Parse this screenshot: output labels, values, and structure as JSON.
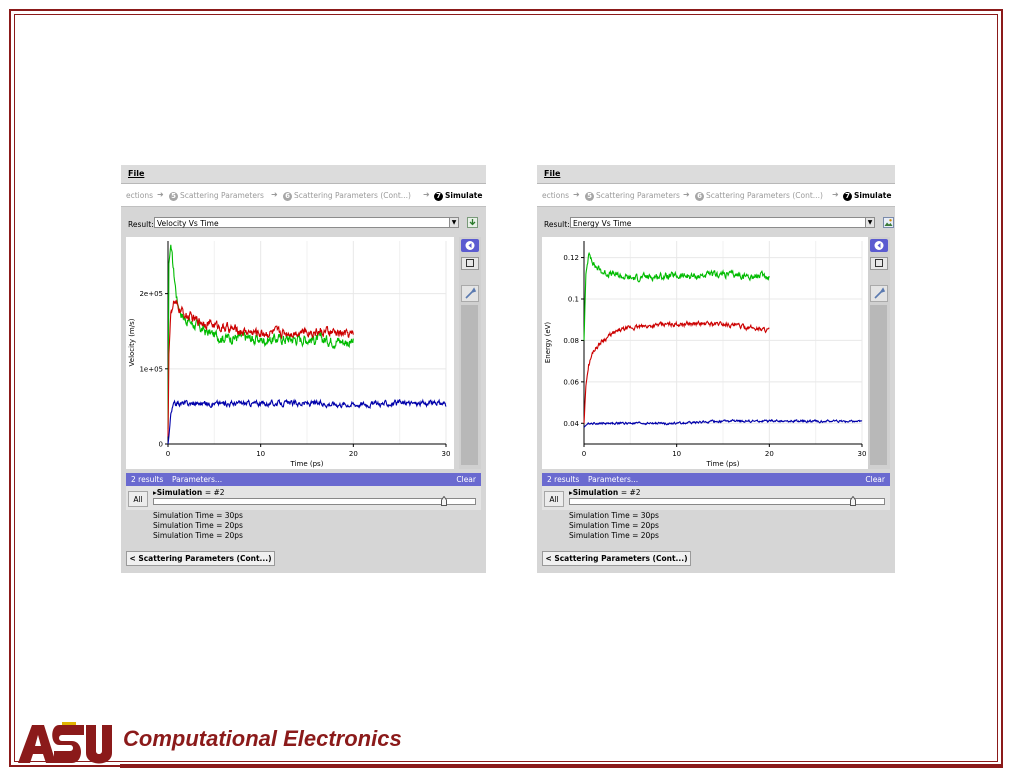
{
  "footer": {
    "title": "Computational Electronics",
    "logo_text": "ASU"
  },
  "panels": [
    {
      "menu": {
        "file_label": "File"
      },
      "breadcrumbs": {
        "partial": "ections",
        "step5_num": "5",
        "step5_label": "Scattering Parameters",
        "step6_num": "6",
        "step6_label": "Scattering Parameters (Cont...)",
        "step7_num": "7",
        "step7_label": "Simulate"
      },
      "result": {
        "label": "Result:",
        "selected": "Velocity Vs Time"
      },
      "results_bar": {
        "count": "2 results",
        "params": "Parameters...",
        "clear": "Clear"
      },
      "simulation": {
        "all_label": "All",
        "label": "Simulation",
        "value": "= #2",
        "slider_position": 0.91
      },
      "sim_list": [
        "Simulation Time = 30ps",
        "Simulation Time = 20ps",
        "Simulation Time = 20ps"
      ],
      "back_button": "< Scattering Parameters (Cont...)",
      "chart_data": {
        "type": "line",
        "xlabel": "Time (ps)",
        "ylabel": "Velocity (m/s)",
        "xlim": [
          0,
          30
        ],
        "ylim": [
          0,
          270000
        ],
        "xticks": [
          0,
          10,
          20,
          30
        ],
        "xtick_labels": [
          "0",
          "10",
          "20",
          "30"
        ],
        "yticks": [
          0,
          100000,
          200000
        ],
        "ytick_labels": [
          "0",
          "1e+05",
          "2e+05"
        ],
        "grid": true,
        "series": [
          {
            "color": "#00bb00",
            "noise": 8000,
            "x": [
              0,
              0.1,
              0.3,
              0.6,
              1,
              1.5,
              2,
              3,
              4,
              5,
              6,
              8,
              10,
              12,
              15,
              18,
              20
            ],
            "y": [
              20000,
              240000,
              265000,
              230000,
              190000,
              172000,
              165000,
              158000,
              150000,
              145000,
              142000,
              142000,
              138000,
              140000,
              140000,
              138000,
              135000
            ]
          },
          {
            "color": "#cc0000",
            "noise": 7000,
            "x": [
              0,
              0.1,
              0.3,
              0.6,
              1,
              2,
              3,
              4,
              6,
              8,
              10,
              12,
              15,
              18,
              20
            ],
            "y": [
              10000,
              120000,
              175000,
              188000,
              182000,
              170000,
              165000,
              162000,
              155000,
              150000,
              148000,
              148000,
              150000,
              148000,
              145000
            ]
          },
          {
            "color": "#0000aa",
            "noise": 4000,
            "x": [
              0,
              0.1,
              0.3,
              0.6,
              1,
              2,
              5,
              10,
              15,
              20,
              25,
              30
            ],
            "y": [
              0,
              10000,
              40000,
              52000,
              54000,
              54000,
              54000,
              54000,
              54000,
              53000,
              54000,
              54000
            ]
          }
        ]
      }
    },
    {
      "menu": {
        "file_label": "File"
      },
      "breadcrumbs": {
        "partial": "ections",
        "step5_num": "5",
        "step5_label": "Scattering Parameters",
        "step6_num": "6",
        "step6_label": "Scattering Parameters (Cont...)",
        "step7_num": "7",
        "step7_label": "Simulate"
      },
      "result": {
        "label": "Result:",
        "selected": "Energy Vs Time"
      },
      "results_bar": {
        "count": "2 results",
        "params": "Parameters...",
        "clear": "Clear"
      },
      "simulation": {
        "all_label": "All",
        "label": "Simulation",
        "value": "= #2",
        "slider_position": 0.91
      },
      "sim_list": [
        "Simulation Time = 30ps",
        "Simulation Time = 20ps",
        "Simulation Time = 20ps"
      ],
      "back_button": "< Scattering Parameters (Cont...)",
      "chart_data": {
        "type": "line",
        "xlabel": "Time (ps)",
        "ylabel": "Energy (eV)",
        "xlim": [
          0,
          30
        ],
        "ylim": [
          0.03,
          0.128
        ],
        "xticks": [
          0,
          10,
          20,
          30
        ],
        "xtick_labels": [
          "0",
          "10",
          "20",
          "30"
        ],
        "yticks": [
          0.04,
          0.06,
          0.08,
          0.1,
          0.12
        ],
        "ytick_labels": [
          "0.04",
          "0.06",
          "0.08",
          "0.1",
          "0.12"
        ],
        "grid": true,
        "series": [
          {
            "color": "#00bb00",
            "noise": 0.0018,
            "x": [
              0,
              0.2,
              0.5,
              0.8,
              1.2,
              2,
              3,
              5,
              8,
              10,
              12,
              15,
              18,
              20
            ],
            "y": [
              0.08,
              0.112,
              0.121,
              0.12,
              0.116,
              0.113,
              0.112,
              0.11,
              0.111,
              0.111,
              0.111,
              0.112,
              0.111,
              0.111
            ]
          },
          {
            "color": "#cc0000",
            "noise": 0.0012,
            "x": [
              0,
              0.2,
              0.5,
              1,
              2,
              3,
              4,
              5,
              7,
              10,
              15,
              20
            ],
            "y": [
              0.04,
              0.058,
              0.068,
              0.075,
              0.08,
              0.083,
              0.085,
              0.086,
              0.087,
              0.088,
              0.088,
              0.085
            ]
          },
          {
            "color": "#0000aa",
            "noise": 0.0006,
            "x": [
              0,
              0.2,
              0.5,
              1,
              5,
              10,
              15,
              20,
              25,
              30
            ],
            "y": [
              0.038,
              0.039,
              0.04,
              0.04,
              0.04,
              0.04,
              0.041,
              0.041,
              0.041,
              0.041
            ]
          }
        ]
      }
    }
  ]
}
